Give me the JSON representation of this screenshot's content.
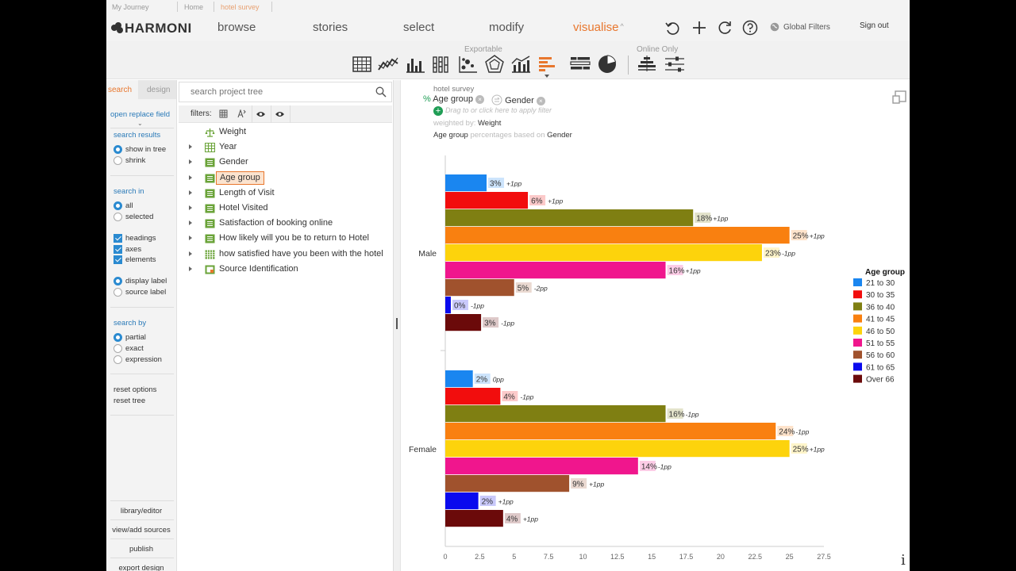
{
  "breadcrumb": {
    "items": [
      "My Journey",
      "Home",
      "hotel survey"
    ]
  },
  "nav": {
    "logo": "HARMONI",
    "items": [
      "browse",
      "stories",
      "select",
      "modify",
      "visualise"
    ],
    "active": "visualise",
    "global_filters": "Global Filters",
    "sign_out": "Sign out"
  },
  "toolbar": {
    "exportable_label": "Exportable",
    "online_only_label": "Online Only"
  },
  "left": {
    "tab_search": "search",
    "tab_design": "design",
    "open_replace": "open replace field",
    "search_results": {
      "title": "search results",
      "options": [
        "show in tree",
        "shrink"
      ],
      "selected": 0
    },
    "search_in": {
      "title": "search in",
      "options": [
        "all",
        "selected"
      ],
      "selected": 0
    },
    "checks": [
      "headings",
      "axes",
      "elements"
    ],
    "labels": {
      "options": [
        "display label",
        "source label"
      ],
      "selected": 0
    },
    "search_by": {
      "title": "search by",
      "options": [
        "partial",
        "exact",
        "expression"
      ],
      "selected": 0
    },
    "reset_options": "reset options",
    "reset_tree": "reset tree",
    "bottom": [
      "library/editor",
      "view/add sources",
      "publish",
      "export design"
    ]
  },
  "tree": {
    "search_placeholder": "search project tree",
    "filters_label": "filters:",
    "items": [
      {
        "label": "Weight",
        "icon": "weight-icon",
        "expandable": false
      },
      {
        "label": "Year",
        "icon": "grid-variable-icon",
        "expandable": true
      },
      {
        "label": "Gender",
        "icon": "list-variable-icon",
        "expandable": true
      },
      {
        "label": "Age group",
        "icon": "list-variable-icon",
        "expandable": true,
        "selected": true
      },
      {
        "label": "Length of Visit",
        "icon": "list-variable-icon",
        "expandable": true
      },
      {
        "label": "Hotel Visited",
        "icon": "list-variable-icon",
        "expandable": true
      },
      {
        "label": "Satisfaction of booking online",
        "icon": "list-variable-icon",
        "expandable": true
      },
      {
        "label": "How likely will you be to return to Hotel",
        "icon": "list-variable-icon",
        "expandable": true
      },
      {
        "label": "how satisfied have you been with the hotel",
        "icon": "grid-multi-icon",
        "expandable": true
      },
      {
        "label": "Source Identification",
        "icon": "source-icon",
        "expandable": true
      }
    ]
  },
  "chart_meta": {
    "source": "hotel survey",
    "percent_sign": "%",
    "row_var": "Age group",
    "col_var": "Gender",
    "filter_hint": "Drag to or click here to apply filter",
    "weighted_by_label": "weighted by:",
    "weighted_by_value": "Weight",
    "basis_var": "Age group",
    "basis_text": "percentages based on",
    "basis_on": "Gender"
  },
  "chart_data": {
    "type": "bar",
    "orientation": "horizontal",
    "groups": [
      "Male",
      "Female"
    ],
    "legend_title": "Age group",
    "legend_position": "right",
    "xlim": [
      0,
      27.5
    ],
    "xticks": [
      "0",
      "2.5",
      "5",
      "7.5",
      "10",
      "12.5",
      "15",
      "17.5",
      "20",
      "22.5",
      "25",
      "27.5"
    ],
    "series": [
      {
        "name": "21 to 30",
        "color": "#1a86f0",
        "values": [
          3,
          2
        ],
        "labels": [
          "3%",
          "2%"
        ],
        "diffs": [
          "+1pp",
          "0pp"
        ]
      },
      {
        "name": "30 to 35",
        "color": "#f20d0d",
        "values": [
          6,
          4
        ],
        "labels": [
          "6%",
          "4%"
        ],
        "diffs": [
          "+1pp",
          "-1pp"
        ]
      },
      {
        "name": "36 to 40",
        "color": "#7f7f12",
        "values": [
          18,
          16
        ],
        "labels": [
          "18%",
          "16%"
        ],
        "diffs": [
          "+1pp",
          "-1pp"
        ]
      },
      {
        "name": "41 to 45",
        "color": "#f98010",
        "values": [
          25,
          24
        ],
        "labels": [
          "25%",
          "24%"
        ],
        "diffs": [
          "+1pp",
          "-1pp"
        ]
      },
      {
        "name": "46 to 50",
        "color": "#fdd30c",
        "values": [
          23,
          25
        ],
        "labels": [
          "23%",
          "25%"
        ],
        "diffs": [
          "-1pp",
          "+1pp"
        ]
      },
      {
        "name": "51 to 55",
        "color": "#f0168d",
        "values": [
          16,
          14
        ],
        "labels": [
          "16%",
          "14%"
        ],
        "diffs": [
          "+1pp",
          "-1pp"
        ]
      },
      {
        "name": "56 to 60",
        "color": "#a0522d",
        "values": [
          5,
          9
        ],
        "labels": [
          "5%",
          "9%"
        ],
        "diffs": [
          "-2pp",
          "+1pp"
        ]
      },
      {
        "name": "61 to 65",
        "color": "#0a0aee",
        "values": [
          0.4,
          2.4
        ],
        "labels": [
          "0%",
          "2%"
        ],
        "diffs": [
          "-1pp",
          "+1pp"
        ]
      },
      {
        "name": "Over 66",
        "color": "#6b0a0a",
        "values": [
          2.6,
          4.2
        ],
        "labels": [
          "3%",
          "4%"
        ],
        "diffs": [
          "-1pp",
          "+1pp"
        ]
      }
    ]
  }
}
